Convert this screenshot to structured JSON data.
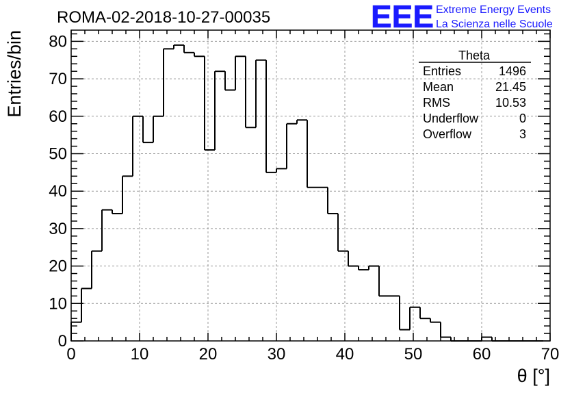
{
  "header": {
    "run_title": "ROMA-02-2018-10-27-00035",
    "logo_text": "EEE",
    "logo_line1": "Extreme Energy Events",
    "logo_line2": "La Scienza nelle Scuole",
    "logo_color": "#1a1aff"
  },
  "stats_box": {
    "title": "Theta",
    "rows": [
      {
        "label": "Entries",
        "value": "1496"
      },
      {
        "label": "Mean",
        "value": "21.45"
      },
      {
        "label": "RMS",
        "value": "10.53"
      },
      {
        "label": "Underflow",
        "value": "0"
      },
      {
        "label": "Overflow",
        "value": "3"
      }
    ]
  },
  "chart_data": {
    "type": "bar",
    "style": "step-histogram",
    "title": "",
    "xlabel": "θ [°]",
    "ylabel": "Entries/bin",
    "xlim": [
      0,
      70
    ],
    "ylim": [
      0,
      83
    ],
    "bin_width": 1.5,
    "x_ticks": [
      0,
      10,
      20,
      30,
      40,
      50,
      60,
      70
    ],
    "y_ticks": [
      0,
      10,
      20,
      30,
      40,
      50,
      60,
      70,
      80
    ],
    "grid": true,
    "line_color": "#000000",
    "grid_color": "#999999",
    "values": [
      5,
      14,
      24,
      35,
      34,
      44,
      60,
      53,
      60,
      78,
      79,
      77,
      76,
      51,
      72,
      67,
      76,
      57,
      75,
      45,
      46,
      58,
      59,
      41,
      41,
      34,
      24,
      20,
      19,
      20,
      12,
      12,
      3,
      9,
      6,
      5,
      1,
      0,
      0,
      0,
      1,
      0,
      0,
      0,
      0,
      0
    ]
  }
}
